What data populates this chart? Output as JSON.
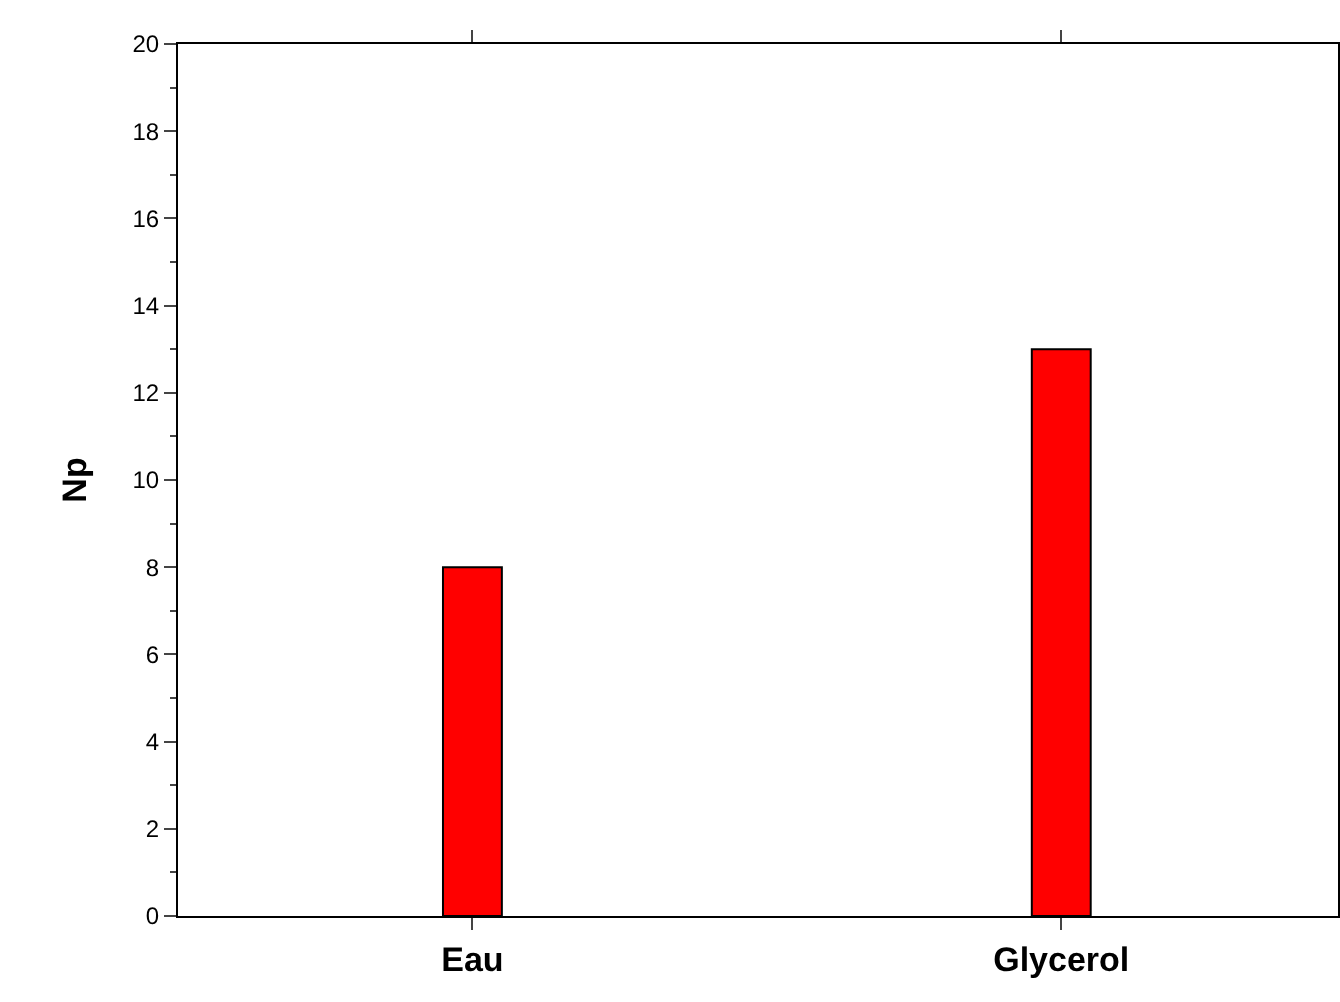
{
  "chart_data": {
    "type": "bar",
    "categories": [
      "Eau",
      "Glycerol"
    ],
    "values": [
      8,
      13
    ],
    "color": "#ff0000",
    "ylabel": "Np",
    "ylim": [
      0,
      20
    ],
    "yticks": [
      0,
      2,
      4,
      6,
      8,
      10,
      12,
      14,
      16,
      18,
      20
    ],
    "grid": false
  }
}
